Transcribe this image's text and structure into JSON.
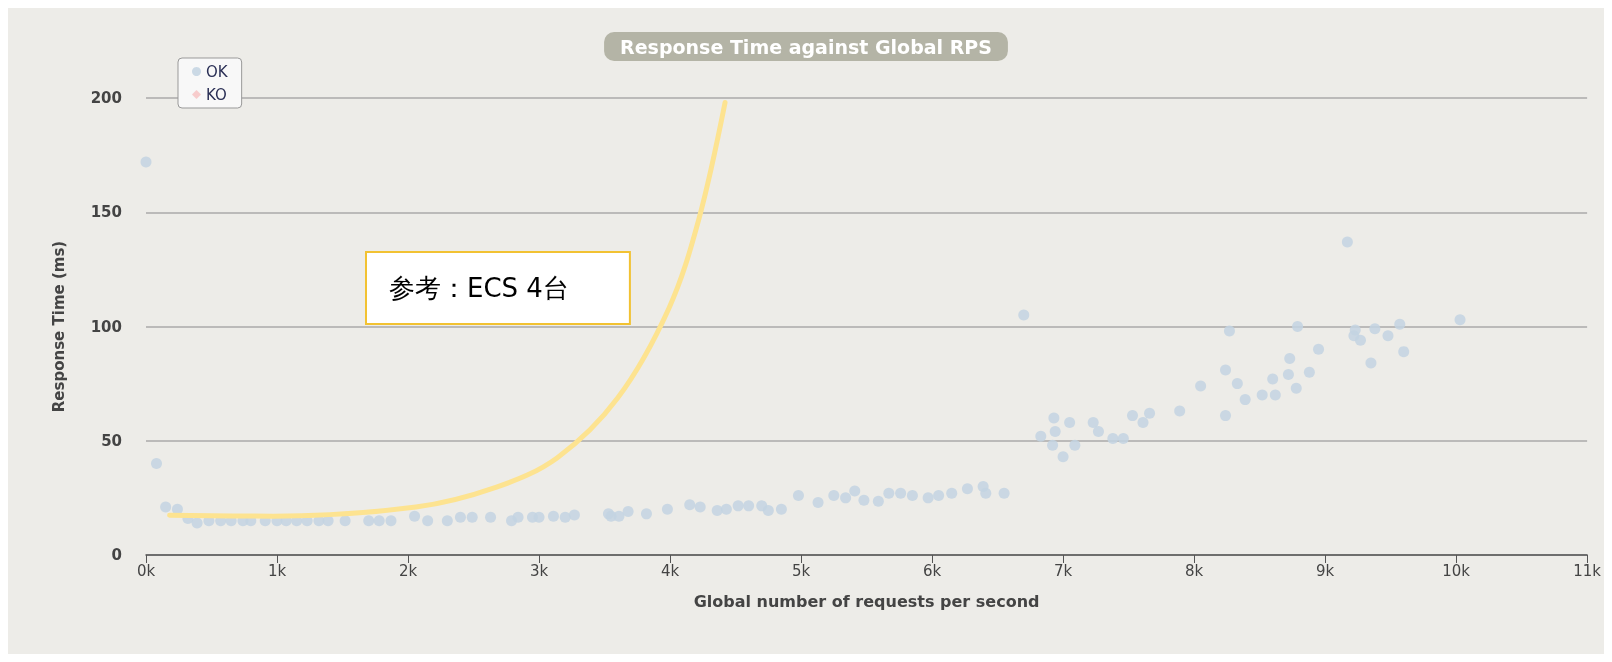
{
  "chart_data": {
    "type": "scatter",
    "title": "Response Time against Global RPS",
    "xlabel": "Global number of requests per second",
    "ylabel": "Response Time (ms)",
    "annotations": [
      "参考：ECS 4台"
    ],
    "xlim": [
      0,
      11000
    ],
    "xticks": [
      {
        "value": 0,
        "label": "0k"
      },
      {
        "value": 1000,
        "label": "1k"
      },
      {
        "value": 2000,
        "label": "2k"
      },
      {
        "value": 3000,
        "label": "3k"
      },
      {
        "value": 4000,
        "label": "4k"
      },
      {
        "value": 5000,
        "label": "5k"
      },
      {
        "value": 6000,
        "label": "6k"
      },
      {
        "value": 7000,
        "label": "7k"
      },
      {
        "value": 8000,
        "label": "8k"
      },
      {
        "value": 9000,
        "label": "9k"
      },
      {
        "value": 10000,
        "label": "10k"
      },
      {
        "value": 11000,
        "label": "11k"
      }
    ],
    "ylim": [
      0,
      200
    ],
    "yticks": [
      0,
      50,
      100,
      150,
      200
    ],
    "grid": "y",
    "legend": "top left",
    "series": [
      {
        "name": "OK",
        "color": "#c3d3e2",
        "marker": "circle",
        "x": [
          0,
          80,
          150,
          240,
          320,
          390,
          480,
          570,
          650,
          740,
          800,
          910,
          1000,
          1070,
          1150,
          1230,
          1320,
          1390,
          1520,
          1700,
          1780,
          1870,
          2050,
          2150,
          2300,
          2400,
          2490,
          2630,
          2790,
          2840,
          2950,
          3000,
          3110,
          3200,
          3270,
          3530,
          3550,
          3610,
          3680,
          3820,
          3980,
          4150,
          4230,
          4360,
          4430,
          4520,
          4600,
          4700,
          4750,
          4850,
          4980,
          5130,
          5250,
          5340,
          5410,
          5480,
          5590,
          5670,
          5760,
          5850,
          5970,
          6050,
          6150,
          6270,
          6390,
          6410,
          6550,
          6700,
          6830,
          6920,
          6930,
          6940,
          7000,
          7050,
          7090,
          7230,
          7270,
          7380,
          7460,
          7530,
          7610,
          7660,
          7890,
          8050,
          8240,
          8240,
          8270,
          8330,
          8390,
          8520,
          8600,
          8620,
          8720,
          8730,
          8780,
          8790,
          8880,
          8950,
          9170,
          9220,
          9230,
          9270,
          9350,
          9380,
          9480,
          9570,
          9600,
          10030
        ],
        "values": [
          172,
          40,
          21,
          20,
          16,
          14,
          15,
          15,
          15,
          15,
          15,
          15,
          15,
          15,
          15,
          15,
          15,
          15,
          15,
          15,
          15,
          15,
          17,
          15,
          15,
          16.5,
          16.5,
          16.5,
          15,
          16.5,
          16.5,
          16.5,
          17,
          16.5,
          17.5,
          18,
          17,
          17,
          19,
          18,
          20,
          22,
          21,
          19.5,
          20,
          21.5,
          21.5,
          21.5,
          19.5,
          20,
          26,
          23,
          26,
          25,
          28,
          24,
          23.5,
          27,
          27,
          26,
          25,
          26,
          27,
          29,
          30,
          27,
          27,
          105,
          52,
          48,
          60,
          54,
          43,
          58,
          48,
          58,
          54,
          51,
          51,
          61,
          58,
          62,
          63,
          74,
          81,
          61,
          98,
          75,
          68,
          70,
          77,
          70,
          79,
          86,
          73,
          100,
          80,
          90,
          137,
          96,
          98.5,
          94,
          84,
          99,
          96,
          101,
          89,
          103
        ]
      },
      {
        "name": "KO",
        "color": "#f7c4c4",
        "marker": "diamond"
      },
      {
        "type": "line",
        "color": "#fde390",
        "marker": "none",
        "x": [
          180,
          970,
          2060,
          2670,
          3140,
          3600,
          3990,
          4220,
          4420
        ],
        "values": [
          17.4,
          17,
          21,
          29.6,
          42.6,
          68.7,
          107.8,
          147,
          198
        ]
      }
    ]
  }
}
